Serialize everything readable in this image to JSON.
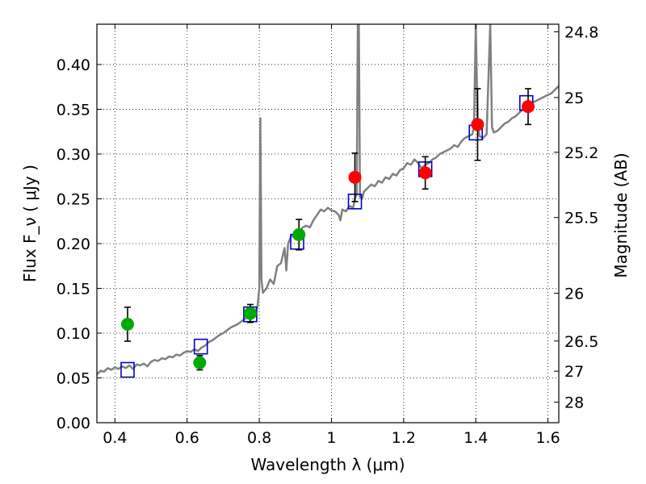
{
  "chart_data": {
    "type": "scatter",
    "xlabel": "Wavelength  λ (μm)",
    "ylabel": "Flux  F_ν  ( μJy )",
    "y2label": "Magnitude (AB)",
    "xlim": [
      0.35,
      1.63
    ],
    "ylim": [
      0.0,
      0.445
    ],
    "grid": true,
    "x_ticks": [
      0.4,
      0.6,
      0.8,
      1.0,
      1.2,
      1.4,
      1.6
    ],
    "x_tick_labels": [
      "0.4",
      "0.6",
      "0.8",
      "1",
      "1.2",
      "1.4",
      "1.6"
    ],
    "y_ticks": [
      0.0,
      0.05,
      0.1,
      0.15,
      0.2,
      0.25,
      0.3,
      0.35,
      0.4
    ],
    "y_tick_labels": [
      "0.00",
      "0.05",
      "0.10",
      "0.15",
      "0.20",
      "0.25",
      "0.30",
      "0.35",
      "0.40"
    ],
    "y2_ticks": [
      {
        "label": "24.8",
        "mag": 24.8
      },
      {
        "label": "25",
        "mag": 25.0
      },
      {
        "label": "25.2",
        "mag": 25.2
      },
      {
        "label": "25.5",
        "mag": 25.5
      },
      {
        "label": "26",
        "mag": 26.0
      },
      {
        "label": "26.5",
        "mag": 26.5
      },
      {
        "label": "27",
        "mag": 27.0
      },
      {
        "label": "28",
        "mag": 28.0
      }
    ],
    "series": [
      {
        "type": "line",
        "color": "#808080",
        "points": [
          [
            0.35,
            0.054
          ],
          [
            0.36,
            0.058
          ],
          [
            0.37,
            0.057
          ],
          [
            0.38,
            0.061
          ],
          [
            0.39,
            0.059
          ],
          [
            0.4,
            0.062
          ],
          [
            0.41,
            0.06
          ],
          [
            0.42,
            0.063
          ],
          [
            0.43,
            0.061
          ],
          [
            0.44,
            0.064
          ],
          [
            0.45,
            0.06
          ],
          [
            0.46,
            0.065
          ],
          [
            0.47,
            0.064
          ],
          [
            0.48,
            0.066
          ],
          [
            0.49,
            0.063
          ],
          [
            0.5,
            0.068
          ],
          [
            0.51,
            0.07
          ],
          [
            0.52,
            0.069
          ],
          [
            0.53,
            0.072
          ],
          [
            0.54,
            0.071
          ],
          [
            0.55,
            0.074
          ],
          [
            0.56,
            0.073
          ],
          [
            0.57,
            0.076
          ],
          [
            0.58,
            0.075
          ],
          [
            0.59,
            0.078
          ],
          [
            0.6,
            0.08
          ],
          [
            0.61,
            0.079
          ],
          [
            0.62,
            0.082
          ],
          [
            0.63,
            0.08
          ],
          [
            0.64,
            0.084
          ],
          [
            0.65,
            0.086
          ],
          [
            0.66,
            0.09
          ],
          [
            0.67,
            0.092
          ],
          [
            0.68,
            0.095
          ],
          [
            0.69,
            0.098
          ],
          [
            0.7,
            0.1
          ],
          [
            0.71,
            0.103
          ],
          [
            0.72,
            0.106
          ],
          [
            0.73,
            0.108
          ],
          [
            0.74,
            0.11
          ],
          [
            0.75,
            0.113
          ],
          [
            0.76,
            0.116
          ],
          [
            0.77,
            0.118
          ],
          [
            0.78,
            0.122
          ],
          [
            0.79,
            0.125
          ],
          [
            0.795,
            0.13
          ],
          [
            0.8,
            0.15
          ],
          [
            0.803,
            0.34
          ],
          [
            0.806,
            0.16
          ],
          [
            0.81,
            0.145
          ],
          [
            0.82,
            0.15
          ],
          [
            0.83,
            0.16
          ],
          [
            0.84,
            0.155
          ],
          [
            0.85,
            0.175
          ],
          [
            0.86,
            0.178
          ],
          [
            0.87,
            0.195
          ],
          [
            0.875,
            0.17
          ],
          [
            0.88,
            0.2
          ],
          [
            0.89,
            0.21
          ],
          [
            0.9,
            0.205
          ],
          [
            0.91,
            0.212
          ],
          [
            0.92,
            0.218
          ],
          [
            0.93,
            0.22
          ],
          [
            0.94,
            0.218
          ],
          [
            0.95,
            0.226
          ],
          [
            0.96,
            0.232
          ],
          [
            0.97,
            0.238
          ],
          [
            0.98,
            0.236
          ],
          [
            0.99,
            0.24
          ],
          [
            1.0,
            0.237
          ],
          [
            1.01,
            0.236
          ],
          [
            1.02,
            0.232
          ],
          [
            1.025,
            0.226
          ],
          [
            1.03,
            0.238
          ],
          [
            1.04,
            0.236
          ],
          [
            1.05,
            0.242
          ],
          [
            1.06,
            0.24
          ],
          [
            1.065,
            0.25
          ],
          [
            1.07,
            0.255
          ],
          [
            1.073,
            0.445
          ],
          [
            1.076,
            0.445
          ],
          [
            1.079,
            0.252
          ],
          [
            1.085,
            0.25
          ],
          [
            1.09,
            0.258
          ],
          [
            1.1,
            0.262
          ],
          [
            1.11,
            0.266
          ],
          [
            1.12,
            0.264
          ],
          [
            1.13,
            0.27
          ],
          [
            1.14,
            0.268
          ],
          [
            1.15,
            0.274
          ],
          [
            1.16,
            0.272
          ],
          [
            1.17,
            0.278
          ],
          [
            1.18,
            0.276
          ],
          [
            1.19,
            0.282
          ],
          [
            1.2,
            0.284
          ],
          [
            1.21,
            0.29
          ],
          [
            1.22,
            0.288
          ],
          [
            1.23,
            0.294
          ],
          [
            1.24,
            0.29
          ],
          [
            1.25,
            0.284
          ],
          [
            1.26,
            0.288
          ],
          [
            1.27,
            0.29
          ],
          [
            1.28,
            0.294
          ],
          [
            1.29,
            0.296
          ],
          [
            1.3,
            0.3
          ],
          [
            1.31,
            0.302
          ],
          [
            1.32,
            0.304
          ],
          [
            1.33,
            0.306
          ],
          [
            1.34,
            0.31
          ],
          [
            1.35,
            0.308
          ],
          [
            1.36,
            0.314
          ],
          [
            1.37,
            0.318
          ],
          [
            1.38,
            0.32
          ],
          [
            1.39,
            0.322
          ],
          [
            1.395,
            0.33
          ],
          [
            1.4,
            0.445
          ],
          [
            1.405,
            0.335
          ],
          [
            1.41,
            0.32
          ],
          [
            1.42,
            0.318
          ],
          [
            1.43,
            0.322
          ],
          [
            1.44,
            0.445
          ],
          [
            1.445,
            0.33
          ],
          [
            1.45,
            0.324
          ],
          [
            1.46,
            0.326
          ],
          [
            1.47,
            0.33
          ],
          [
            1.48,
            0.334
          ],
          [
            1.49,
            0.336
          ],
          [
            1.5,
            0.34
          ],
          [
            1.51,
            0.342
          ],
          [
            1.52,
            0.346
          ],
          [
            1.53,
            0.35
          ],
          [
            1.54,
            0.352
          ],
          [
            1.55,
            0.356
          ],
          [
            1.56,
            0.358
          ],
          [
            1.57,
            0.36
          ],
          [
            1.58,
            0.362
          ],
          [
            1.59,
            0.364
          ],
          [
            1.6,
            0.366
          ],
          [
            1.61,
            0.368
          ],
          [
            1.62,
            0.372
          ],
          [
            1.63,
            0.376
          ]
        ]
      },
      {
        "type": "square_markers",
        "color": "#0000cc",
        "points": [
          [
            0.435,
            0.059
          ],
          [
            0.638,
            0.085
          ],
          [
            0.775,
            0.121
          ],
          [
            0.905,
            0.202
          ],
          [
            1.065,
            0.247
          ],
          [
            1.26,
            0.283
          ],
          [
            1.4,
            0.324
          ],
          [
            1.54,
            0.357
          ]
        ]
      },
      {
        "type": "circle_markers",
        "color": "#00aa00",
        "points": [
          {
            "x": 0.435,
            "y": 0.11,
            "err": 0.019
          },
          {
            "x": 0.635,
            "y": 0.067,
            "err": 0.008
          },
          {
            "x": 0.775,
            "y": 0.122,
            "err": 0.01
          },
          {
            "x": 0.91,
            "y": 0.21,
            "err": 0.017
          }
        ]
      },
      {
        "type": "circle_markers",
        "color": "#ff0000",
        "points": [
          {
            "x": 1.065,
            "y": 0.274,
            "err": 0.027
          },
          {
            "x": 1.26,
            "y": 0.279,
            "err": 0.018
          },
          {
            "x": 1.405,
            "y": 0.333,
            "err": 0.04
          },
          {
            "x": 1.545,
            "y": 0.353,
            "err": 0.02
          }
        ]
      }
    ]
  }
}
